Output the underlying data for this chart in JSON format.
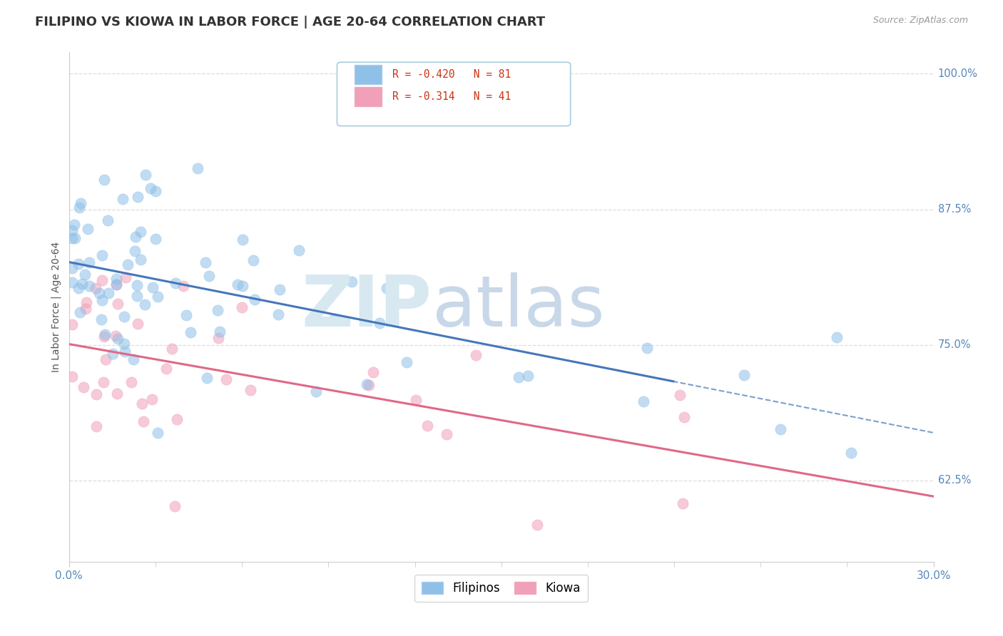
{
  "title": "FILIPINO VS KIOWA IN LABOR FORCE | AGE 20-64 CORRELATION CHART",
  "source": "Source: ZipAtlas.com",
  "ylabel": "In Labor Force | Age 20-64",
  "xlim": [
    0.0,
    0.3
  ],
  "ylim": [
    0.55,
    1.02
  ],
  "ytick_positions": [
    0.625,
    0.75,
    0.875,
    1.0
  ],
  "ytick_labels_right": [
    "62.5%",
    "75.0%",
    "87.5%",
    "100.0%"
  ],
  "filipino_color": "#8ec0e8",
  "kiowa_color": "#f0a0b8",
  "trendline_filipino_color": "#4477bb",
  "trendline_kiowa_color": "#e06888",
  "watermark_zip_color": "#d8e8f0",
  "watermark_atlas_color": "#c8d8e8",
  "title_color": "#333333",
  "source_color": "#999999",
  "ylabel_color": "#555555",
  "tick_label_color": "#5588bb",
  "grid_color": "#dddddd",
  "axis_color": "#cccccc"
}
